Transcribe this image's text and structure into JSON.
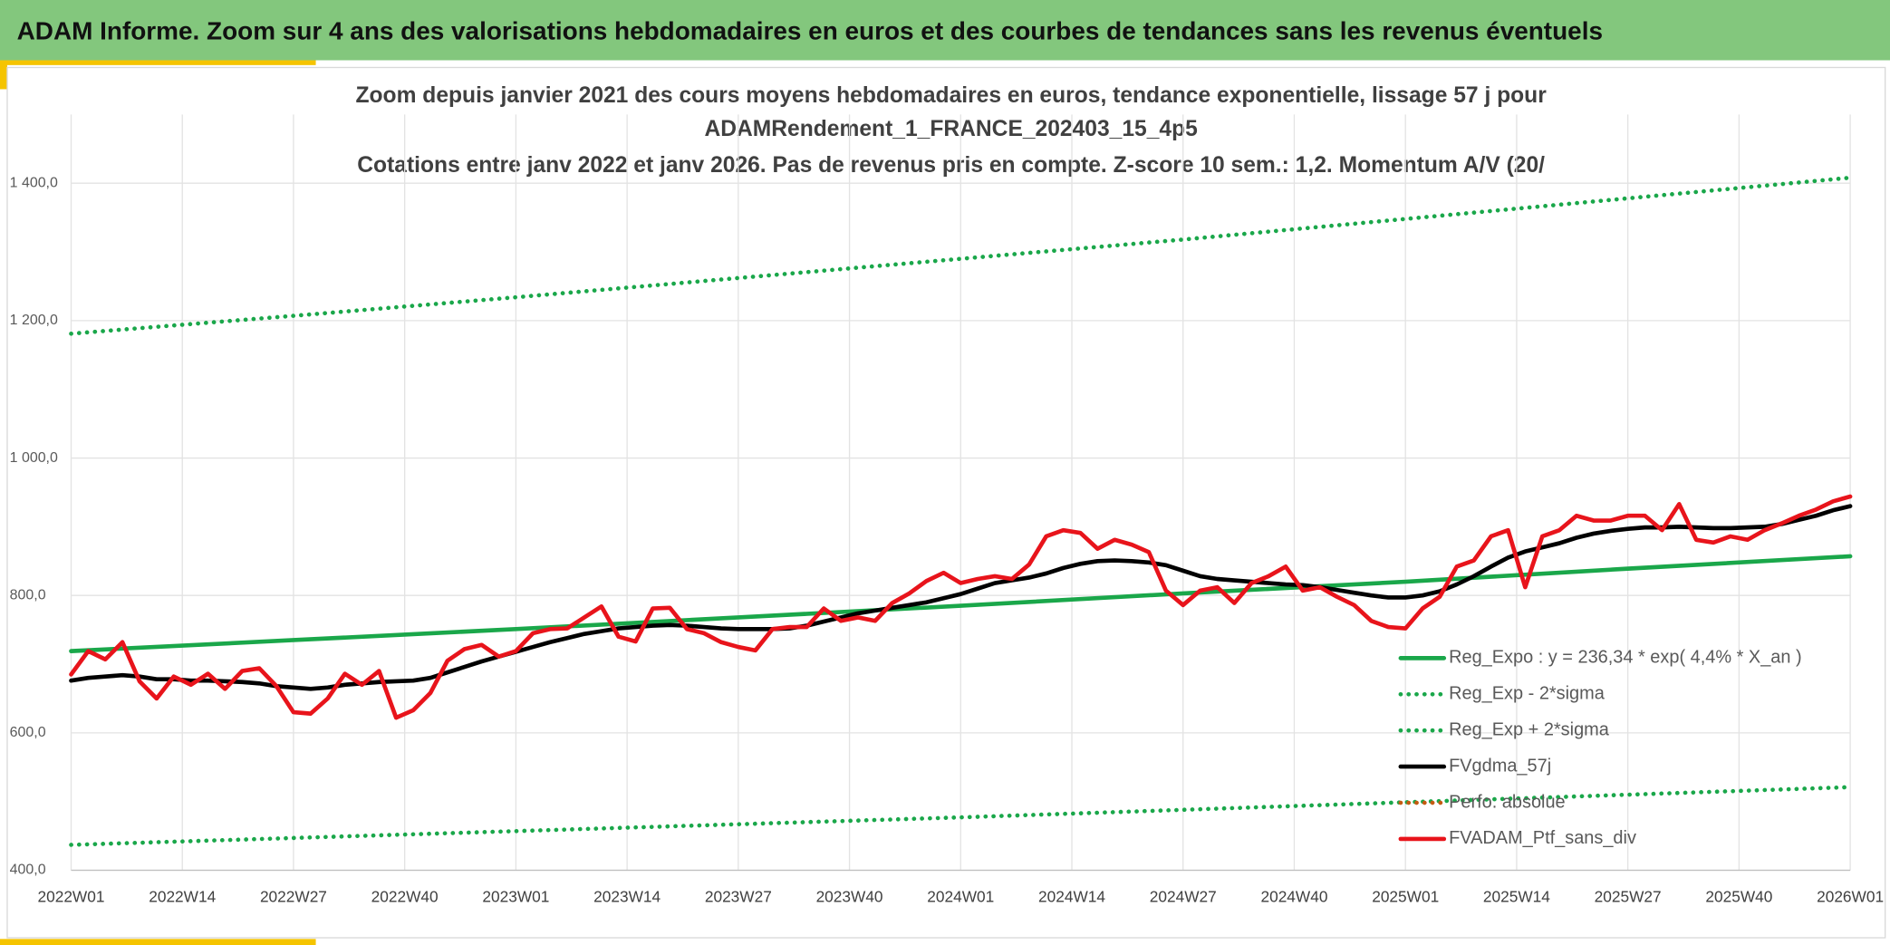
{
  "header": {
    "title": "ADAM Informe. Zoom sur 4 ans des valorisations hebdomadaires en euros et des courbes de tendances sans les revenus éventuels"
  },
  "chart_data": {
    "type": "line",
    "title": [
      "Zoom depuis janvier 2021 des cours moyens hebdomadaires en euros, tendance exponentielle, lissage 57 j pour",
      "ADAMRendement_1_FRANCE_202403_15_4p5",
      "Cotations entre janv 2022 et janv 2026. Pas de revenus pris en compte. Z-score 10 sem.: 1,2. Momentum A/V (20/"
    ],
    "xlim": [
      0,
      208
    ],
    "xticks": [
      {
        "value": 0,
        "label": "2022W01"
      },
      {
        "value": 13,
        "label": "2022W14"
      },
      {
        "value": 26,
        "label": "2022W27"
      },
      {
        "value": 39,
        "label": "2022W40"
      },
      {
        "value": 52,
        "label": "2023W01"
      },
      {
        "value": 65,
        "label": "2023W14"
      },
      {
        "value": 78,
        "label": "2023W27"
      },
      {
        "value": 91,
        "label": "2023W40"
      },
      {
        "value": 104,
        "label": "2024W01"
      },
      {
        "value": 117,
        "label": "2024W14"
      },
      {
        "value": 130,
        "label": "2024W27"
      },
      {
        "value": 143,
        "label": "2024W40"
      },
      {
        "value": 156,
        "label": "2025W01"
      },
      {
        "value": 169,
        "label": "2025W14"
      },
      {
        "value": 182,
        "label": "2025W27"
      },
      {
        "value": 195,
        "label": "2025W40"
      },
      {
        "value": 208,
        "label": "2026W01"
      }
    ],
    "ylim": [
      400,
      1500
    ],
    "yticks": [
      {
        "value": 400,
        "label": "400,0"
      },
      {
        "value": 600,
        "label": "600,0"
      },
      {
        "value": 800,
        "label": "800,0"
      },
      {
        "value": 1000,
        "label": "1 000,0"
      },
      {
        "value": 1200,
        "label": "1 200,0"
      },
      {
        "value": 1400,
        "label": "1 400,0"
      }
    ],
    "grid": true,
    "legend": "right",
    "series": [
      {
        "name": "Reg_Expo : y = 236,34 * exp( 4,4% *  X_an )",
        "color": "#1aa74a",
        "dash": "solid",
        "x": [
          0,
          26,
          52,
          78,
          104,
          130,
          156,
          182,
          208
        ],
        "values": [
          719,
          735,
          751,
          768,
          785,
          803,
          820,
          839,
          857
        ]
      },
      {
        "name": "Reg_Exp - 2*sigma",
        "color": "#1aa74a",
        "dash": "dotted",
        "x": [
          0,
          26,
          52,
          78,
          104,
          130,
          156,
          182,
          208
        ],
        "values": [
          437,
          447,
          457,
          467,
          477,
          488,
          499,
          510,
          521
        ]
      },
      {
        "name": "Reg_Exp + 2*sigma",
        "color": "#1aa74a",
        "dash": "dotted",
        "x": [
          0,
          26,
          52,
          78,
          104,
          130,
          156,
          182,
          208
        ],
        "values": [
          1181,
          1207,
          1234,
          1262,
          1290,
          1318,
          1348,
          1378,
          1408
        ]
      },
      {
        "name": "FVgdma_57j",
        "color": "#000000",
        "dash": "solid",
        "x": [
          0,
          2,
          4,
          6,
          8,
          10,
          12,
          14,
          16,
          18,
          20,
          22,
          24,
          26,
          28,
          30,
          32,
          34,
          36,
          38,
          40,
          42,
          44,
          46,
          48,
          50,
          52,
          54,
          56,
          58,
          60,
          62,
          64,
          66,
          68,
          70,
          72,
          74,
          76,
          78,
          80,
          82,
          84,
          86,
          88,
          90,
          92,
          94,
          96,
          98,
          100,
          102,
          104,
          106,
          108,
          110,
          112,
          114,
          116,
          118,
          120,
          122,
          124,
          126,
          128,
          130,
          132,
          134,
          136,
          138,
          140,
          142,
          144,
          146,
          148,
          150,
          152,
          154,
          156,
          158,
          160,
          162,
          164,
          166,
          168,
          170,
          172,
          174,
          176,
          178,
          180,
          182,
          184,
          186,
          188,
          190,
          192,
          194,
          196,
          198,
          200,
          202,
          204,
          206,
          208
        ],
        "values": [
          676,
          680,
          682,
          684,
          682,
          678,
          678,
          676,
          676,
          675,
          674,
          672,
          668,
          666,
          664,
          666,
          670,
          672,
          674,
          675,
          676,
          680,
          688,
          696,
          704,
          711,
          718,
          725,
          732,
          738,
          744,
          748,
          752,
          754,
          756,
          757,
          756,
          754,
          752,
          751,
          751,
          751,
          752,
          756,
          762,
          768,
          774,
          778,
          782,
          786,
          790,
          796,
          802,
          810,
          818,
          822,
          826,
          832,
          840,
          846,
          850,
          851,
          850,
          848,
          844,
          836,
          828,
          824,
          822,
          820,
          818,
          816,
          815,
          812,
          808,
          804,
          800,
          797,
          797,
          800,
          806,
          816,
          828,
          842,
          855,
          864,
          870,
          876,
          884,
          890,
          894,
          897,
          899,
          899,
          900,
          899,
          898,
          898,
          899,
          900,
          904,
          910,
          916,
          924,
          930
        ]
      },
      {
        "name": "Perfo. absolue",
        "color": "#c55a11",
        "dash": "dotted",
        "x": [],
        "values": []
      },
      {
        "name": "FVADAM_Ptf_sans_div",
        "color": "#e8141b",
        "dash": "solid",
        "x": [
          0,
          2,
          4,
          6,
          8,
          10,
          12,
          14,
          16,
          18,
          20,
          22,
          24,
          26,
          28,
          30,
          32,
          34,
          36,
          38,
          40,
          42,
          44,
          46,
          48,
          50,
          52,
          54,
          56,
          58,
          60,
          62,
          64,
          66,
          68,
          70,
          72,
          74,
          76,
          78,
          80,
          82,
          84,
          86,
          88,
          90,
          92,
          94,
          96,
          98,
          100,
          102,
          104,
          106,
          108,
          110,
          112,
          114,
          116,
          118,
          120,
          122,
          124,
          126,
          128,
          130,
          132,
          134,
          136,
          138,
          140,
          142,
          144,
          146,
          148,
          150,
          152,
          154,
          156,
          158,
          160,
          162,
          164,
          166,
          168,
          170,
          172,
          174,
          176,
          178,
          180,
          182,
          184,
          186,
          188,
          190,
          192,
          194,
          196,
          198,
          200,
          202,
          204,
          206,
          208
        ],
        "values": [
          685,
          719,
          707,
          732,
          675,
          650,
          682,
          670,
          686,
          664,
          690,
          694,
          668,
          630,
          628,
          650,
          686,
          670,
          690,
          622,
          633,
          658,
          705,
          722,
          728,
          711,
          719,
          745,
          751,
          752,
          768,
          784,
          740,
          733,
          781,
          782,
          751,
          745,
          732,
          725,
          720,
          751,
          754,
          754,
          781,
          763,
          768,
          763,
          789,
          803,
          821,
          833,
          818,
          824,
          828,
          824,
          845,
          886,
          895,
          891,
          868,
          881,
          874,
          863,
          807,
          786,
          807,
          812,
          789,
          818,
          828,
          842,
          807,
          812,
          798,
          786,
          763,
          754,
          752,
          781,
          798,
          842,
          851,
          886,
          895,
          812,
          886,
          895,
          916,
          909,
          909,
          916,
          916,
          895,
          933,
          881,
          877,
          886,
          881,
          895,
          905,
          916,
          925,
          937,
          944
        ]
      }
    ]
  }
}
